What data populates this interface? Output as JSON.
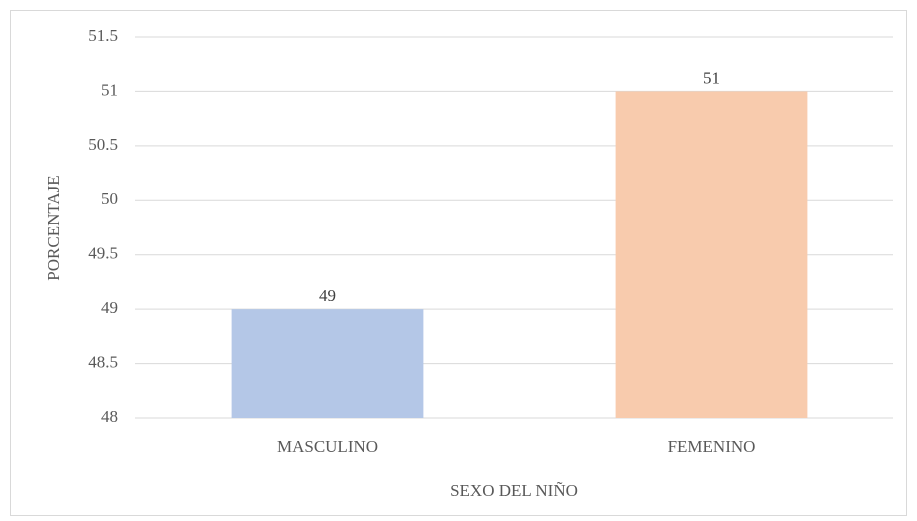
{
  "chart_data": {
    "type": "bar",
    "x_label": "SEXO DEL NIÑO",
    "y_label": "PORCENTAJE",
    "categories": [
      "MASCULINO",
      "FEMENINO"
    ],
    "values": [
      49,
      51
    ],
    "colors": [
      "#b4c7e7",
      "#f8cbad"
    ],
    "ylim": [
      48,
      51.5
    ],
    "yticks": [
      48,
      48.5,
      49,
      49.5,
      50,
      50.5,
      51,
      51.5
    ],
    "grid": true
  }
}
